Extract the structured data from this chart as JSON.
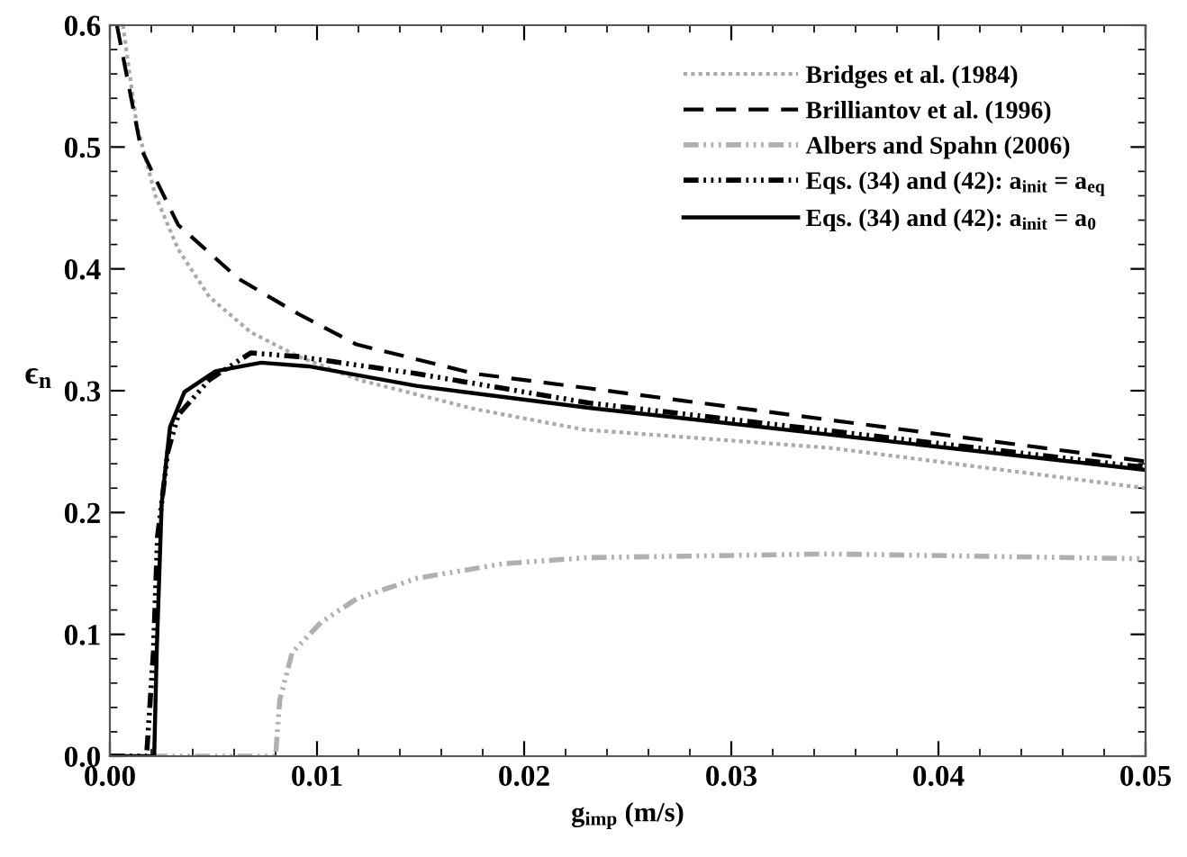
{
  "chart_data": {
    "type": "line",
    "xlabel": "g$_{imp}$ (m/s)",
    "ylabel": "ϵ$_{n}$",
    "xlim": [
      0,
      0.05
    ],
    "ylim": [
      0,
      0.6
    ],
    "xticks": [
      {
        "value": 0,
        "label": "0.00"
      },
      {
        "value": 0.01,
        "label": "0.01"
      },
      {
        "value": 0.02,
        "label": "0.02"
      },
      {
        "value": 0.03,
        "label": "0.03"
      },
      {
        "value": 0.04,
        "label": "0.04"
      },
      {
        "value": 0.05,
        "label": "0.05"
      }
    ],
    "yticks": [
      {
        "value": 0,
        "label": "0.0"
      },
      0.1,
      0.2,
      0.3,
      0.4,
      0.5,
      0.6
    ],
    "grid": false,
    "legend": "top right",
    "marker": "none",
    "series": [
      {
        "name": "Bridges et al. (1984)",
        "color": "#aaaaaa",
        "line_style": "dotted",
        "x": [
          0.00063,
          0.0013,
          0.0022,
          0.0033,
          0.0048,
          0.0068,
          0.0091,
          0.012,
          0.0176,
          0.0229,
          0.0348,
          0.05
        ],
        "values": [
          0.6,
          0.518,
          0.46,
          0.416,
          0.377,
          0.348,
          0.328,
          0.309,
          0.285,
          0.268,
          0.253,
          0.22
        ]
      },
      {
        "name": "Brilliantov et al. (1996)",
        "color": "#000000",
        "line_style": "dashed",
        "x": [
          0.00034,
          0.0015,
          0.0022,
          0.0033,
          0.0062,
          0.0091,
          0.0119,
          0.0176,
          0.0231,
          0.05
        ],
        "values": [
          0.6,
          0.499,
          0.474,
          0.436,
          0.392,
          0.363,
          0.338,
          0.314,
          0.302,
          0.242
        ]
      },
      {
        "name": "Albers and Spahn (2006)",
        "color": "#b0b0b0",
        "line_style": "dashdotdot",
        "x": [
          0,
          0.008,
          0.0082,
          0.0088,
          0.0102,
          0.0119,
          0.0148,
          0.019,
          0.0231,
          0.0348,
          0.05
        ],
        "values": [
          0,
          0,
          0.046,
          0.085,
          0.11,
          0.129,
          0.146,
          0.158,
          0.163,
          0.166,
          0.162
        ]
      },
      {
        "name": "Eqs. (34) and (42): a$_{init}$ = a$_{eq}$",
        "color": "#000000",
        "line_style": "dashdotdot",
        "x": [
          0,
          0.00177,
          0.0021,
          0.0023,
          0.0028,
          0.0033,
          0.0048,
          0.0068,
          0.0091,
          0.0148,
          0.0231,
          0.05
        ],
        "values": [
          0,
          0,
          0.085,
          0.18,
          0.25,
          0.28,
          0.309,
          0.331,
          0.328,
          0.314,
          0.29,
          0.237
        ]
      },
      {
        "name": "Eqs. (34) and (42): a$_{init}$ = a$_{0}$",
        "color": "#000000",
        "line_style": "solid",
        "x": [
          0,
          0.00214,
          0.00226,
          0.0025,
          0.0029,
          0.0036,
          0.0051,
          0.0073,
          0.0096,
          0.0148,
          0.0231,
          0.05
        ],
        "values": [
          0,
          0,
          0.085,
          0.207,
          0.27,
          0.299,
          0.316,
          0.323,
          0.32,
          0.304,
          0.286,
          0.235
        ]
      }
    ]
  }
}
